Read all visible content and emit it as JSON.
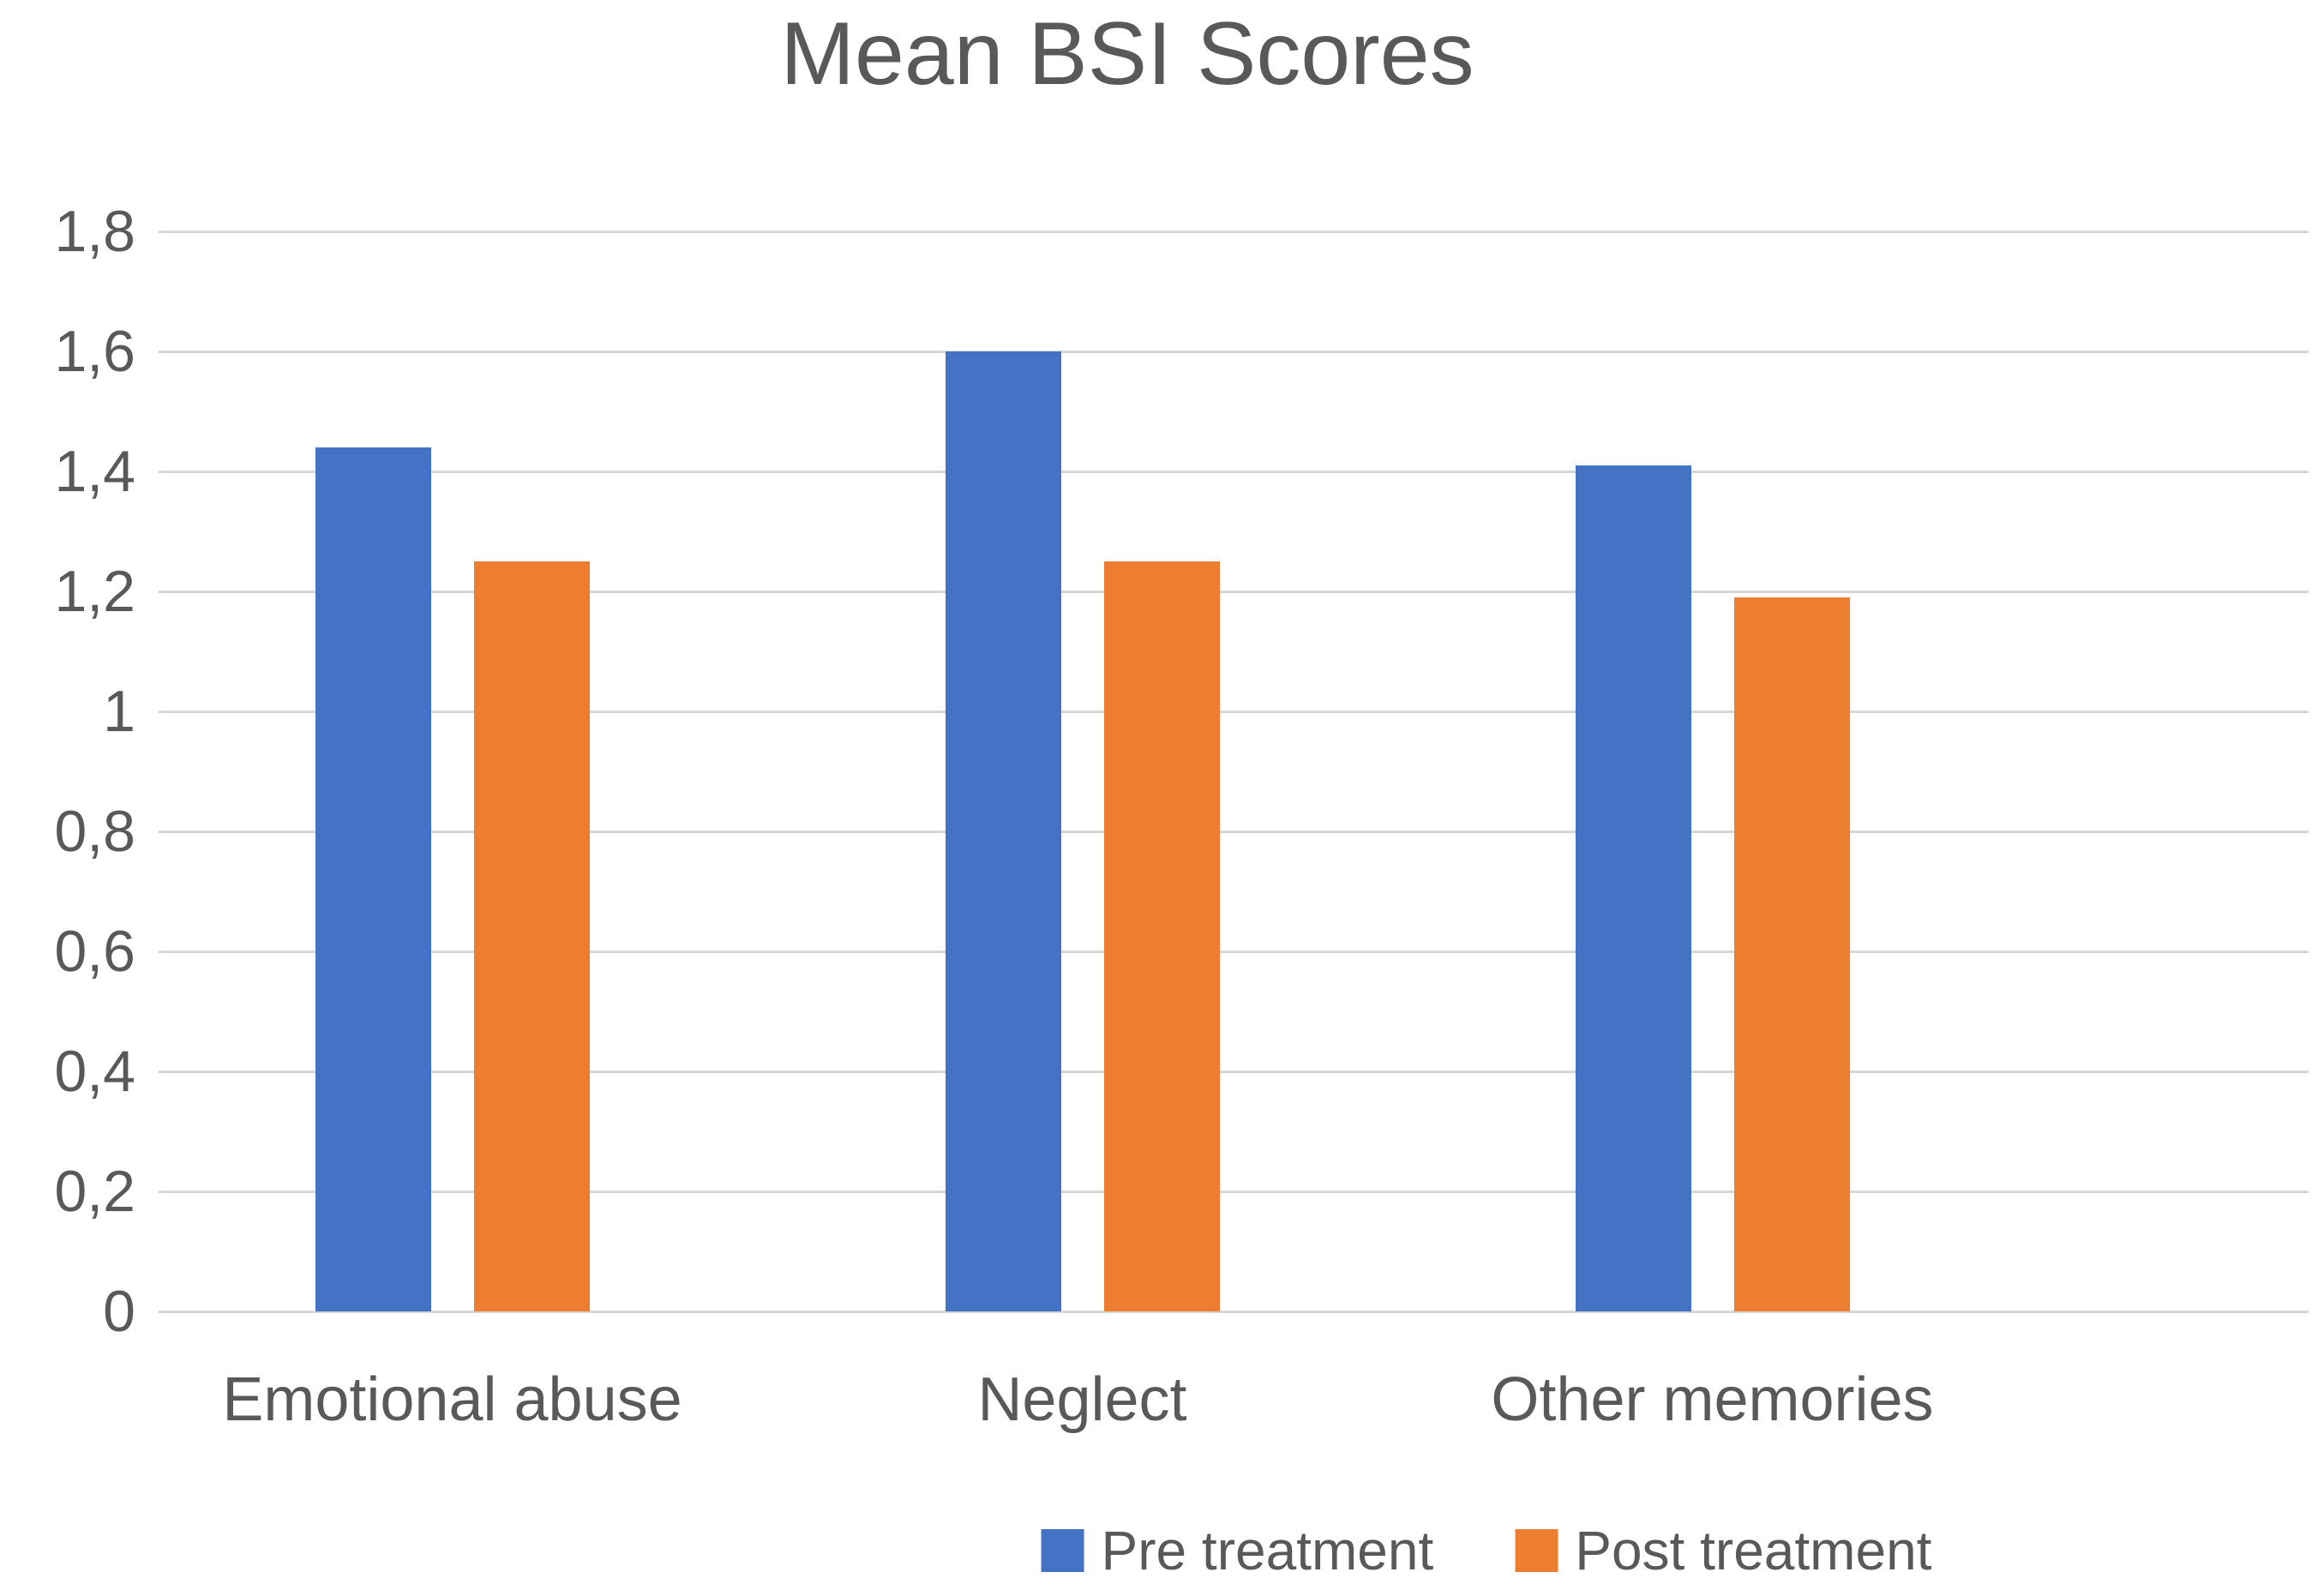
{
  "chart_data": {
    "type": "bar",
    "title": "Mean BSI Scores",
    "categories": [
      "Emotional abuse",
      "Neglect",
      "Other memories"
    ],
    "series": [
      {
        "name": "Pre treatment",
        "color": "#4472C4",
        "values": [
          1.44,
          1.6,
          1.41
        ]
      },
      {
        "name": "Post treatment",
        "color": "#ED7D31",
        "values": [
          1.25,
          1.25,
          1.19
        ]
      }
    ],
    "ylim": [
      0,
      1.8
    ],
    "ytick_step": 0.2,
    "ytick_labels": [
      "0",
      "0,2",
      "0,4",
      "0,6",
      "0,8",
      "1",
      "1,2",
      "1,4",
      "1,6",
      "1,8"
    ],
    "decimal_separator": ",",
    "grid": true,
    "legend_position": "bottom",
    "colors": {
      "text": "#595959",
      "gridline": "#d6d6d6",
      "background": "#ffffff"
    }
  }
}
